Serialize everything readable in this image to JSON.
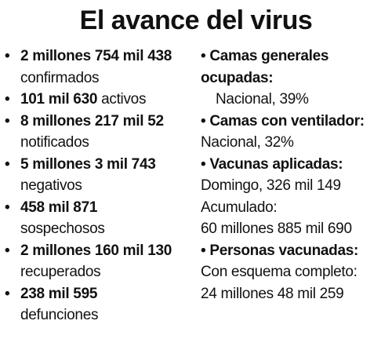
{
  "title": "El avance del virus",
  "bullet": "•",
  "left": [
    {
      "value": "2 millones 754 mil 438",
      "label": "confirmados"
    },
    {
      "value": "101 mil 630",
      "label": "activos"
    },
    {
      "value": "8 millones 217 mil 52",
      "label": "notificados"
    },
    {
      "value": "5 millones 3 mil 743",
      "label": "negativos"
    },
    {
      "value": "458 mil 871",
      "label": "sospechosos"
    },
    {
      "value": "2 millones 160 mil 130",
      "label": "recuperados"
    },
    {
      "value": "238 mil 595",
      "label": "defunciones"
    }
  ],
  "right": {
    "camas_generales": {
      "heading": "Camas generales ocupadas:",
      "detail": "Nacional, 39%"
    },
    "camas_ventilador": {
      "heading": "Camas con ventilador:",
      "detail": "Nacional, 32%"
    },
    "vacunas": {
      "heading": "Vacunas aplicadas:",
      "domingo": "Domingo, 326 mil 149",
      "acumulado_label": "Acumulado:",
      "acumulado": "60 millones 885 mil 690"
    },
    "personas": {
      "heading": "Personas vacunadas:",
      "esquema_label": "Con esquema completo:",
      "esquema": "24 millones 48 mil 259"
    }
  }
}
